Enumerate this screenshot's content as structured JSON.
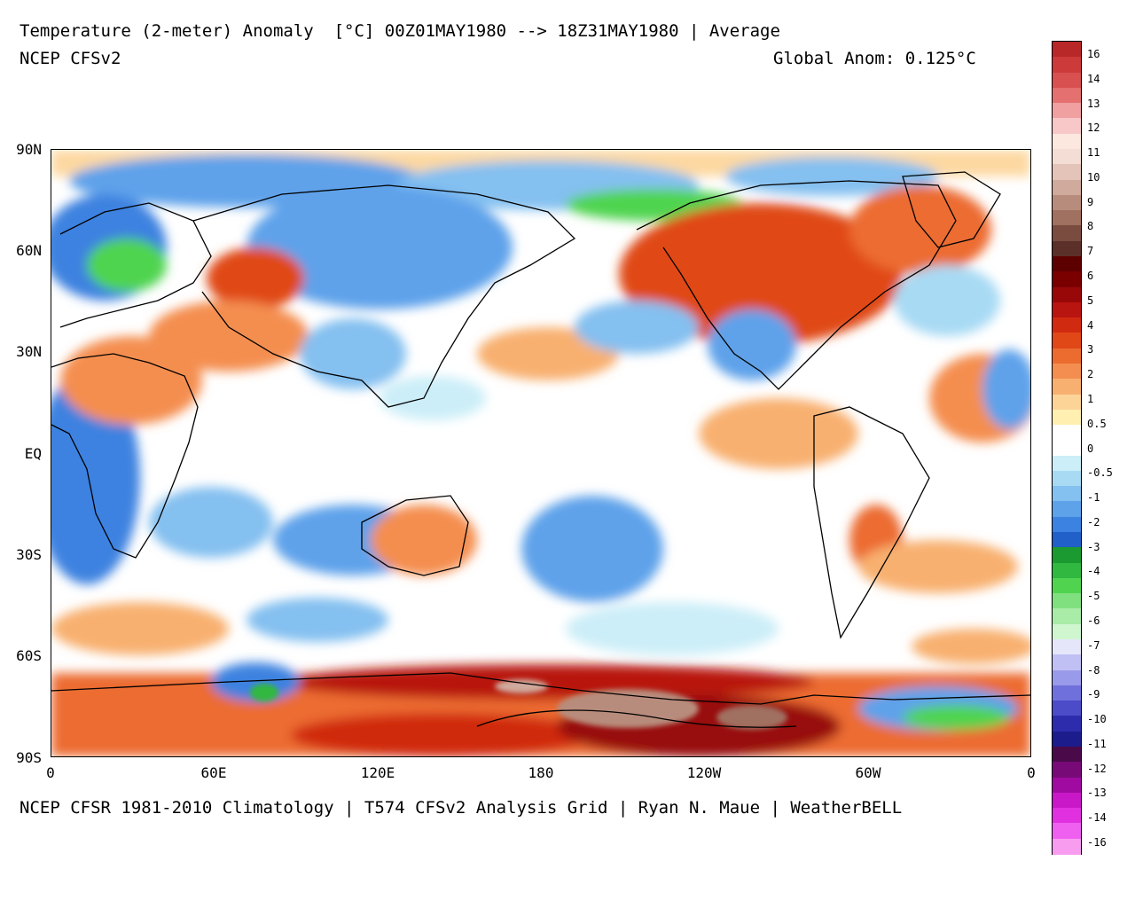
{
  "header": {
    "title": "Temperature (2-meter) Anomaly  [°C] 00Z01MAY1980 --> 18Z31MAY1980 | Average",
    "model": "NCEP CFSv2",
    "global_anom": "Global Anom: 0.125°C"
  },
  "footer": {
    "credits": "NCEP CFSR 1981-2010 Climatology | T574 CFSv2 Analysis Grid | Ryan N. Maue | WeatherBELL"
  },
  "map": {
    "lat_labels": [
      "90N",
      "60N",
      "30N",
      "EQ",
      "30S",
      "60S",
      "90S"
    ],
    "lon_labels": [
      "0",
      "60E",
      "120E",
      "180",
      "120W",
      "60W",
      "0"
    ]
  },
  "colorbar": {
    "labels": [
      "16",
      "14",
      "13",
      "12",
      "11",
      "10",
      "9",
      "8",
      "7",
      "6",
      "5",
      "4",
      "3",
      "2",
      "1",
      "0.5",
      "0",
      "-0.5",
      "-1",
      "-2",
      "-3",
      "-4",
      "-5",
      "-6",
      "-7",
      "-8",
      "-9",
      "-10",
      "-11",
      "-12",
      "-13",
      "-14",
      "-16"
    ],
    "colors": [
      "#b82828",
      "#cc3a3a",
      "#d85050",
      "#e47070",
      "#f0a0a0",
      "#f8c8c8",
      "#fde8e0",
      "#f4ddd4",
      "#e4c4b8",
      "#d0aa9c",
      "#b88c7c",
      "#a07060",
      "#7a4c40",
      "#5a3028",
      "#5c0000",
      "#7a0000",
      "#980808",
      "#b81410",
      "#d02a10",
      "#e04818",
      "#ec6c30",
      "#f48e50",
      "#f8b070",
      "#fcd498",
      "#ffefb0",
      "#ffffff",
      "#ffffff",
      "#cceef8",
      "#a8daf4",
      "#84c0f0",
      "#5ea2ea",
      "#3c82e0",
      "#2060c8",
      "#1a9a30",
      "#30b840",
      "#50d450",
      "#80e080",
      "#a8eca8",
      "#d0f6d0",
      "#e6e6fa",
      "#c0c0f4",
      "#9a9aea",
      "#7070dc",
      "#4c4cc8",
      "#2c2cac",
      "#1c1c8c",
      "#4a0a4a",
      "#780a78",
      "#a00aa0",
      "#c818c8",
      "#e030e0",
      "#f060f0",
      "#f89cf0"
    ]
  },
  "chart_data": {
    "type": "heatmap",
    "title": "Temperature (2-meter) Anomaly  [°C] 00Z01MAY1980 --> 18Z31MAY1980 | Average",
    "subtitle": "NCEP CFSv2",
    "units": "°C",
    "global_anomaly": 0.125,
    "x_range": [
      0,
      360
    ],
    "y_range": [
      -90,
      90
    ],
    "x_ticks": [
      "0",
      "60E",
      "120E",
      "180",
      "120W",
      "60W",
      "0"
    ],
    "y_ticks": [
      "90N",
      "60N",
      "30N",
      "EQ",
      "30S",
      "60S",
      "90S"
    ],
    "scale_levels": [
      16,
      14,
      13,
      12,
      11,
      10,
      9,
      8,
      7,
      6,
      5,
      4,
      3,
      2,
      1,
      0.5,
      0,
      -0.5,
      -1,
      -2,
      -3,
      -4,
      -5,
      -6,
      -7,
      -8,
      -9,
      -10,
      -11,
      -12,
      -13,
      -14,
      -16
    ]
  }
}
